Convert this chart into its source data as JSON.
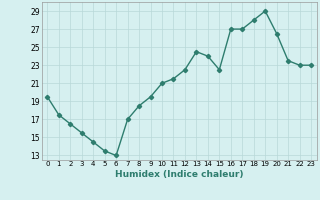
{
  "x": [
    0,
    1,
    2,
    3,
    4,
    5,
    6,
    7,
    8,
    9,
    10,
    11,
    12,
    13,
    14,
    15,
    16,
    17,
    18,
    19,
    20,
    21,
    22,
    23
  ],
  "y": [
    19.5,
    17.5,
    16.5,
    15.5,
    14.5,
    13.5,
    13.0,
    17.0,
    18.5,
    19.5,
    21.0,
    21.5,
    22.5,
    24.5,
    24.0,
    22.5,
    27.0,
    27.0,
    28.0,
    29.0,
    26.5,
    23.5,
    23.0,
    23.0
  ],
  "xlabel": "Humidex (Indice chaleur)",
  "yticks": [
    13,
    15,
    17,
    19,
    21,
    23,
    25,
    27,
    29
  ],
  "xticks": [
    0,
    1,
    2,
    3,
    4,
    5,
    6,
    7,
    8,
    9,
    10,
    11,
    12,
    13,
    14,
    15,
    16,
    17,
    18,
    19,
    20,
    21,
    22,
    23
  ],
  "ylim": [
    12.5,
    30.0
  ],
  "xlim": [
    -0.5,
    23.5
  ],
  "line_color": "#2e7d6e",
  "bg_color": "#d6f0f0",
  "grid_color": "#b8d8d8",
  "marker": "D",
  "marker_size": 2.2,
  "line_width": 1.0
}
